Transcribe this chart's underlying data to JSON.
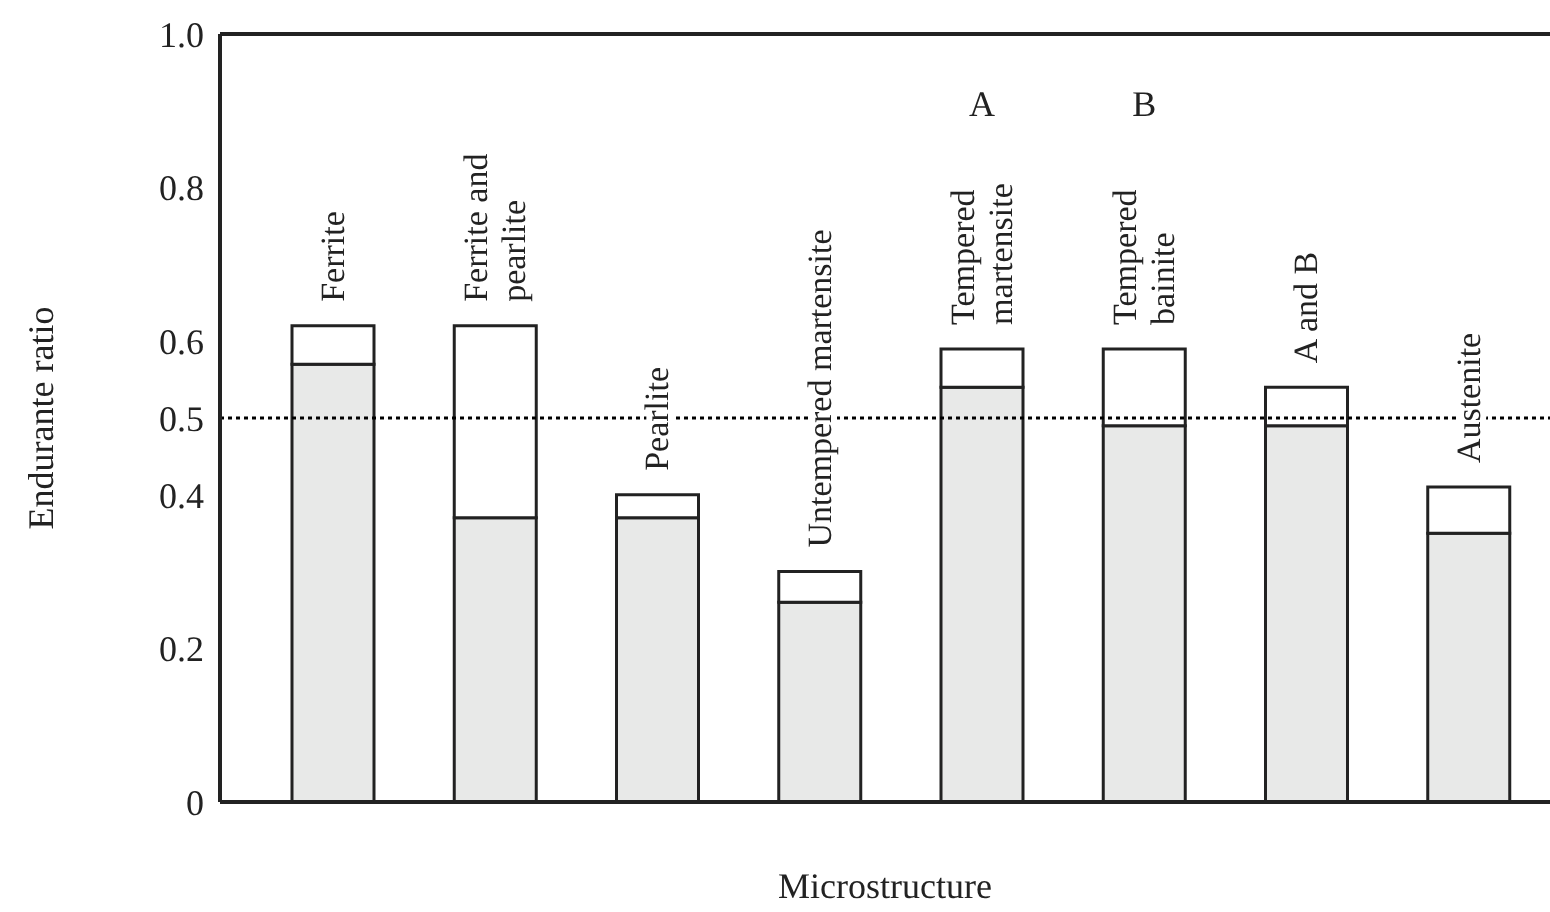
{
  "chart_data": {
    "type": "bar",
    "stacked": true,
    "categories": [
      "Ferrite",
      "Ferrite and\npearlite",
      "Pearlite",
      "Untempered martensite",
      "Tempered\nmartensite",
      "Tempered\nbainite",
      "A and B",
      "Austenite"
    ],
    "series": [
      {
        "color": "#e8e9e8",
        "values": [
          0.57,
          0.37,
          0.37,
          0.26,
          0.54,
          0.49,
          0.49,
          0.35
        ]
      },
      {
        "color": "#ffffff",
        "values": [
          0.05,
          0.25,
          0.03,
          0.04,
          0.05,
          0.1,
          0.05,
          0.06
        ]
      }
    ],
    "xlabel": "Microstructure",
    "ylabel": "Endurante ratio",
    "ylim": [
      0,
      1
    ],
    "yticks": [
      0,
      0.2,
      0.4,
      0.5,
      0.6,
      0.8,
      {
        "value": 1,
        "label": "1.0"
      }
    ],
    "ref_lines": [
      {
        "axis": "y",
        "value": 0.5,
        "color": "#000000",
        "line_style": "dotted"
      }
    ],
    "annotations": [
      "A",
      "B"
    ],
    "grid": false,
    "legend": false
  }
}
